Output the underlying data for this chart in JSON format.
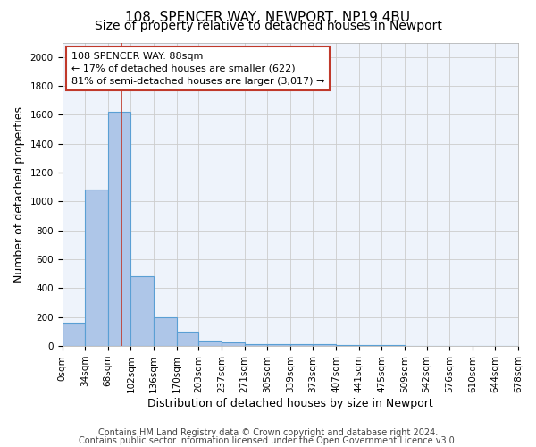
{
  "title_line1": "108, SPENCER WAY, NEWPORT, NP19 4BU",
  "title_line2": "Size of property relative to detached houses in Newport",
  "xlabel": "Distribution of detached houses by size in Newport",
  "ylabel": "Number of detached properties",
  "bin_edges": [
    0,
    34,
    68,
    102,
    136,
    170,
    203,
    237,
    271,
    305,
    339,
    373,
    407,
    441,
    475,
    509,
    542,
    576,
    610,
    644,
    678
  ],
  "bar_heights": [
    160,
    1080,
    1620,
    480,
    200,
    100,
    40,
    25,
    15,
    10,
    10,
    10,
    5,
    5,
    5,
    3,
    3,
    2,
    2,
    2
  ],
  "bar_color": "#aec6e8",
  "bar_edge_color": "#5a9fd4",
  "bar_linewidth": 0.8,
  "grid_color": "#cccccc",
  "background_color": "#eef3fb",
  "property_line_x": 88,
  "property_line_color": "#c0392b",
  "annotation_line1": "108 SPENCER WAY: 88sqm",
  "annotation_line2": "← 17% of detached houses are smaller (622)",
  "annotation_line3": "81% of semi-detached houses are larger (3,017) →",
  "annotation_box_color": "#ffffff",
  "annotation_box_edge_color": "#c0392b",
  "ylim": [
    0,
    2100
  ],
  "yticks": [
    0,
    200,
    400,
    600,
    800,
    1000,
    1200,
    1400,
    1600,
    1800,
    2000
  ],
  "tick_labels": [
    "0sqm",
    "34sqm",
    "68sqm",
    "102sqm",
    "136sqm",
    "170sqm",
    "203sqm",
    "237sqm",
    "271sqm",
    "305sqm",
    "339sqm",
    "373sqm",
    "407sqm",
    "441sqm",
    "475sqm",
    "509sqm",
    "542sqm",
    "576sqm",
    "610sqm",
    "644sqm",
    "678sqm"
  ],
  "footnote_line1": "Contains HM Land Registry data © Crown copyright and database right 2024.",
  "footnote_line2": "Contains public sector information licensed under the Open Government Licence v3.0.",
  "title_fontsize": 11,
  "subtitle_fontsize": 10,
  "axis_label_fontsize": 9,
  "tick_fontsize": 7.5,
  "annotation_fontsize": 8,
  "footnote_fontsize": 7
}
